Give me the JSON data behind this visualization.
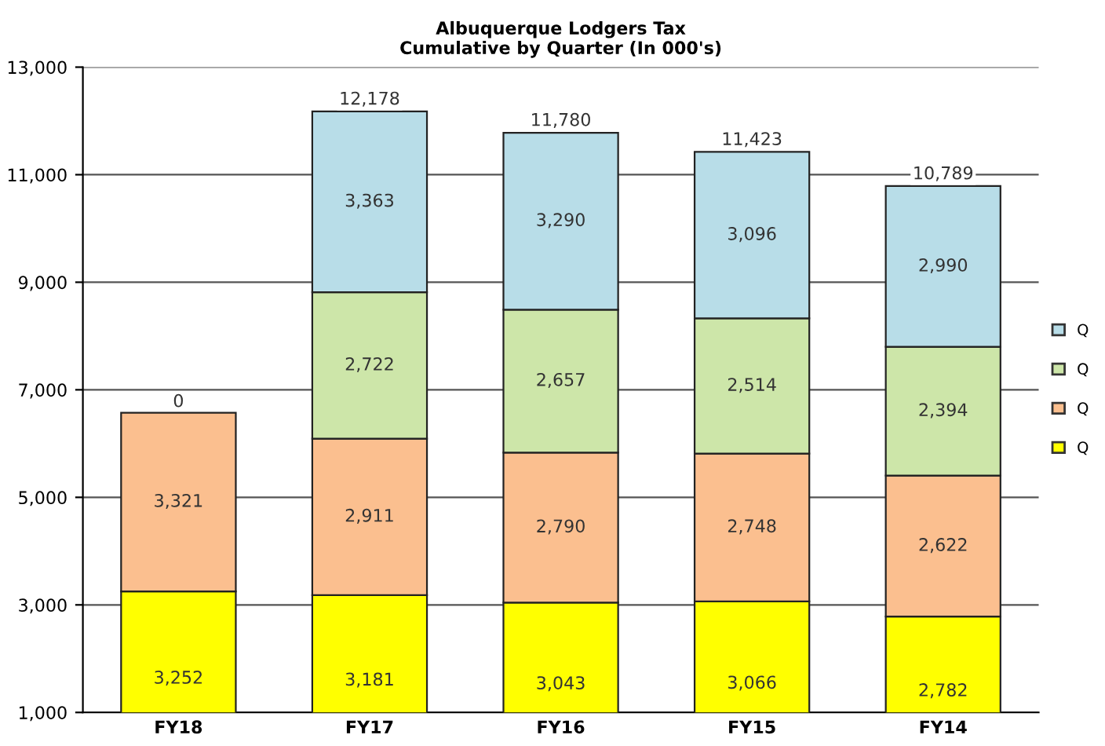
{
  "chart_data": {
    "type": "bar",
    "stacked": true,
    "title": "Albuquerque Lodgers Tax\nCumulative by Quarter (In 000's)",
    "categories": [
      "FY18",
      "FY17",
      "FY16",
      "FY15",
      "FY14"
    ],
    "series": [
      {
        "name": "Q",
        "color": "#ffff00",
        "values": [
          3252,
          3181,
          3043,
          3066,
          2782
        ],
        "value_labels": [
          "3,252",
          "3,181",
          "3,043",
          "3,066",
          "2,782"
        ]
      },
      {
        "name": "Q",
        "color": "#fbbf8f",
        "values": [
          3321,
          2911,
          2790,
          2748,
          2622
        ],
        "value_labels": [
          "3,321",
          "2,911",
          "2,790",
          "2,748",
          "2,622"
        ]
      },
      {
        "name": "Q",
        "color": "#cde6a9",
        "values": [
          null,
          2722,
          2657,
          2514,
          2394
        ],
        "value_labels": [
          null,
          "2,722",
          "2,657",
          "2,514",
          "2,394"
        ]
      },
      {
        "name": "Q",
        "color": "#b8dde8",
        "values": [
          null,
          3363,
          3290,
          3096,
          2990
        ],
        "value_labels": [
          null,
          "3,363",
          "3,290",
          "3,096",
          "2,990"
        ]
      }
    ],
    "annotations": [
      {
        "text": "0",
        "x": "FY18",
        "y": 6573
      }
    ],
    "totals": [
      null,
      "12,178",
      "11,780",
      "11,423",
      "10,789"
    ],
    "ylim": [
      1000,
      13000
    ],
    "yticks": [
      {
        "value": 1000,
        "label": "1,000"
      },
      {
        "value": 3000,
        "label": "3,000"
      },
      {
        "value": 5000,
        "label": "5,000"
      },
      {
        "value": 7000,
        "label": "7,000"
      },
      {
        "value": 9000,
        "label": "9,000"
      },
      {
        "value": 11000,
        "label": "11,000"
      },
      {
        "value": 13000,
        "label": "13,000"
      }
    ],
    "grid": "y",
    "legend": "right"
  }
}
